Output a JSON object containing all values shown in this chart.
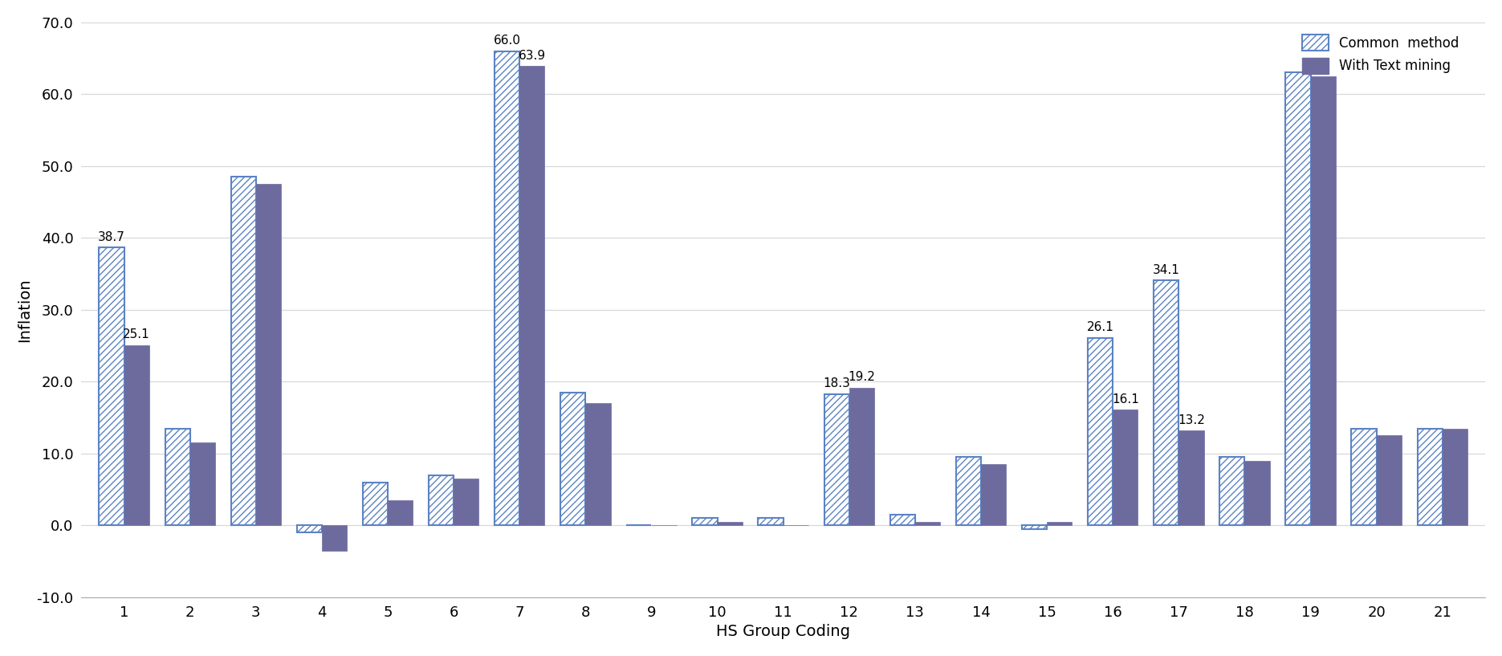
{
  "categories": [
    1,
    2,
    3,
    4,
    5,
    6,
    7,
    8,
    9,
    10,
    11,
    12,
    13,
    14,
    15,
    16,
    17,
    18,
    19,
    20,
    21
  ],
  "common_method": [
    38.7,
    13.5,
    48.5,
    -1.0,
    6.0,
    7.0,
    66.0,
    18.5,
    0.0,
    1.0,
    1.0,
    18.3,
    1.5,
    9.5,
    -0.5,
    26.1,
    34.1,
    9.5,
    63.0,
    13.5,
    13.5
  ],
  "text_mining": [
    25.1,
    11.5,
    47.5,
    -3.5,
    3.5,
    6.5,
    63.9,
    17.0,
    0.0,
    0.5,
    0.0,
    19.2,
    0.5,
    8.5,
    0.5,
    16.1,
    13.2,
    9.0,
    62.5,
    12.5,
    13.5
  ],
  "hatch_bar_facecolor": "white",
  "hatch_bar_edgecolor": "#5B83C4",
  "hatch_pattern": "////",
  "solid_bar_color": "#6D6B9E",
  "ylabel": "Inflation",
  "xlabel": "HS Group Coding",
  "ylim": [
    -10.0,
    70.0
  ],
  "yticks": [
    -10.0,
    0.0,
    10.0,
    20.0,
    30.0,
    40.0,
    50.0,
    60.0,
    70.0
  ],
  "legend_label1": "Common  method",
  "legend_label2": "With Text mining",
  "bar_width": 0.38,
  "label_indices_common": [
    0,
    6,
    11,
    15,
    16
  ],
  "label_values_common": [
    "38.7",
    "66.0",
    "18.3",
    "26.1",
    "34.1"
  ],
  "label_indices_text": [
    0,
    6,
    11,
    15,
    16
  ],
  "label_values_text": [
    "25.1",
    "63.9",
    "19.2",
    "16.1",
    "13.2"
  ],
  "figsize": [
    18.71,
    8.17
  ],
  "dpi": 100,
  "tick_fontsize": 13,
  "label_fontsize": 14,
  "annotation_fontsize": 11,
  "grid_color": "#d8d8d8",
  "background_color": "#ffffff"
}
